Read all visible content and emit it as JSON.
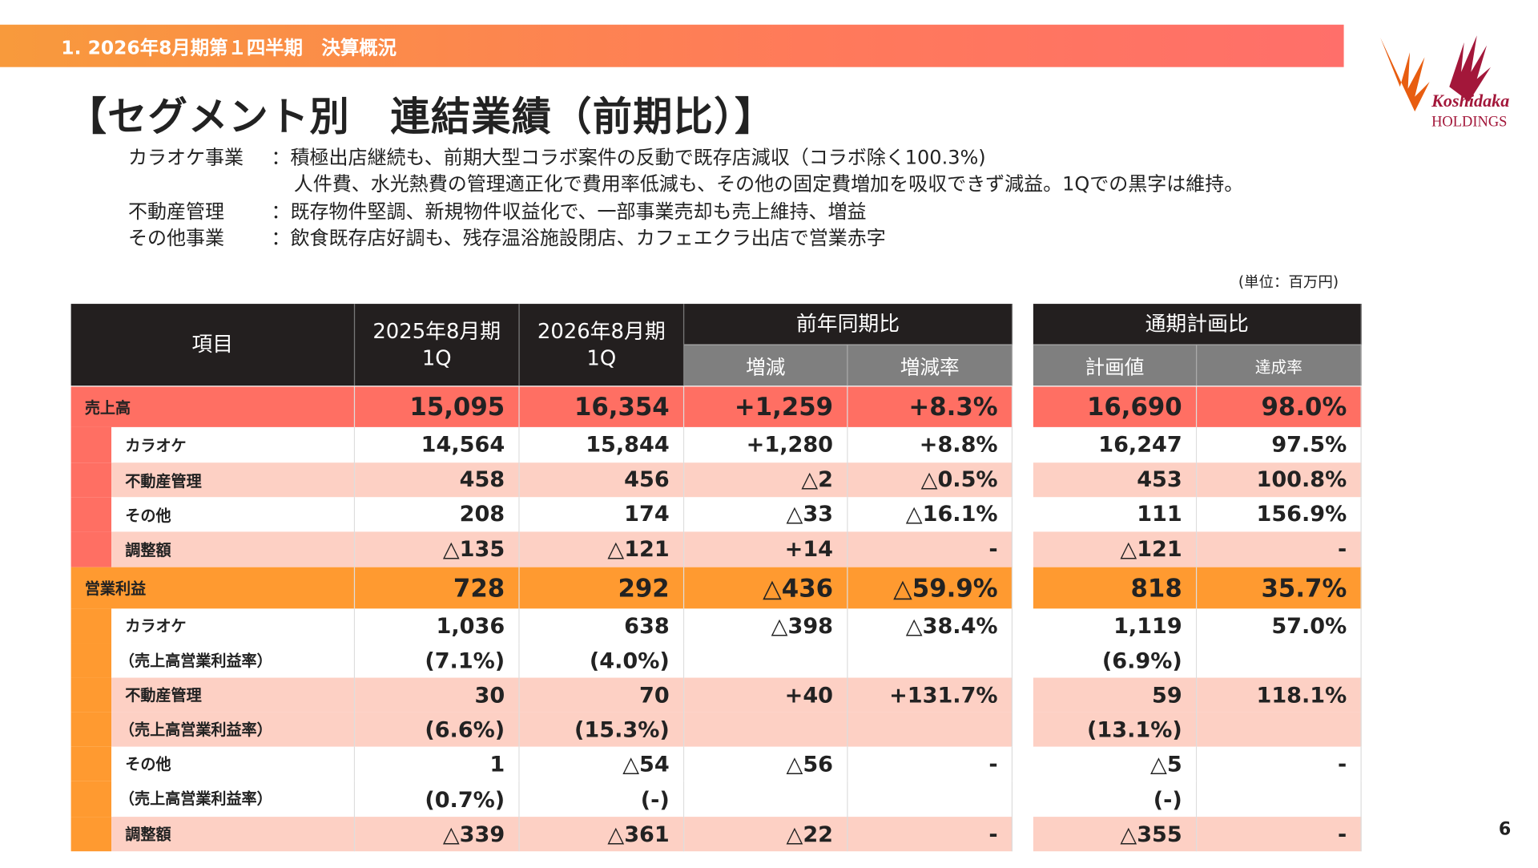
{
  "header": {
    "section": "1. 2026年8月期第１四半期　決算概況"
  },
  "logo": {
    "text": "Koshidaka",
    "sub": "HOLDINGS"
  },
  "title": "【セグメント別　連結業績（前期比）】",
  "description": [
    {
      "label": "カラオケ事業",
      "text": "：積極出店継続も、前期大型コラボ案件の反動で既存店減収（コラボ除く100.3%)"
    },
    {
      "label": "",
      "text": "人件費、水光熱費の管理適正化で費用率低減も、その他の固定費増加を吸収できず減益。1Qでの黒字は維持。"
    },
    {
      "label": "不動産管理",
      "text": "：既存物件堅調、新規物件収益化で、一部事業売却も売上維持、増益"
    },
    {
      "label": "その他事業",
      "text": "：飲食既存店好調も、残存温浴施設閉店、カフェエクラ出店で営業赤字"
    }
  ],
  "unit": "(単位：百万円)",
  "table": {
    "headers": {
      "item": "項目",
      "prev": "2025年8月期\n1Q",
      "curr": "2026年8月期\n1Q",
      "yoy": "前年同期比",
      "yoy_diff": "増減",
      "yoy_rate": "増減率",
      "plan": "通期計画比",
      "plan_value": "計画値",
      "plan_rate": "達成率"
    },
    "rows": [
      {
        "label": "売上高",
        "kind": "sales-total",
        "values": [
          "15,095",
          "16,354",
          "+1,259",
          "+8.3%",
          "16,690",
          "98.0%"
        ]
      },
      {
        "label": "カラオケ",
        "kind": "sales-white",
        "values": [
          "14,564",
          "15,844",
          "+1,280",
          "+8.8%",
          "16,247",
          "97.5%"
        ]
      },
      {
        "label": "不動産管理",
        "kind": "sales-pink",
        "values": [
          "458",
          "456",
          "△2",
          "△0.5%",
          "453",
          "100.8%"
        ]
      },
      {
        "label": "その他",
        "kind": "sales-white",
        "values": [
          "208",
          "174",
          "△33",
          "△16.1%",
          "111",
          "156.9%"
        ]
      },
      {
        "label": "調整額",
        "kind": "sales-pink",
        "values": [
          "△135",
          "△121",
          "+14",
          "-",
          "△121",
          "-"
        ]
      },
      {
        "label": "営業利益",
        "kind": "op-total",
        "values": [
          "728",
          "292",
          "△436",
          "△59.9%",
          "818",
          "35.7%"
        ]
      },
      {
        "label": "カラオケ",
        "kind": "op-white",
        "values": [
          "1,036",
          "638",
          "△398",
          "△38.4%",
          "1,119",
          "57.0%"
        ]
      },
      {
        "label": "（売上高営業利益率）",
        "kind": "op-white",
        "values": [
          "(7.1%)",
          "(4.0%)",
          "",
          "",
          "(6.9%)",
          ""
        ]
      },
      {
        "label": "不動産管理",
        "kind": "op-pink",
        "values": [
          "30",
          "70",
          "+40",
          "+131.7%",
          "59",
          "118.1%"
        ]
      },
      {
        "label": "（売上高営業利益率）",
        "kind": "op-pink",
        "values": [
          "(6.6%)",
          "(15.3%)",
          "",
          "",
          "(13.1%)",
          ""
        ]
      },
      {
        "label": "その他",
        "kind": "op-white",
        "values": [
          "1",
          "△54",
          "△56",
          "-",
          "△5",
          "-"
        ]
      },
      {
        "label": "（売上高営業利益率）",
        "kind": "op-white",
        "values": [
          "(0.7%)",
          "(-)",
          "",
          "",
          "(-)",
          ""
        ]
      },
      {
        "label": "調整額",
        "kind": "op-pink",
        "values": [
          "△339",
          "△361",
          "△22",
          "-",
          "△355",
          "-"
        ]
      }
    ]
  },
  "page_number": "6",
  "colors": {
    "sales": "#ff6f63",
    "operating": "#ff9a30",
    "pink": "#fdd0c4",
    "header": "#231f1f",
    "subheader": "#7f7f7f"
  }
}
